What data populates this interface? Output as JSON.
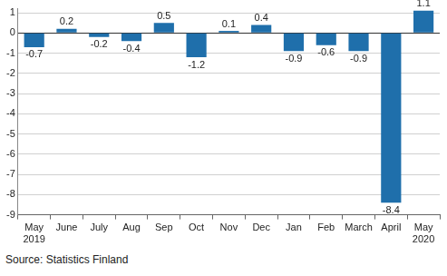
{
  "chart_data": {
    "type": "bar",
    "categories": [
      "May 2019",
      "June",
      "July",
      "Aug",
      "Sep",
      "Oct",
      "Nov",
      "Dec",
      "Jan",
      "Feb",
      "March",
      "April",
      "May 2020"
    ],
    "values": [
      -0.7,
      0.2,
      -0.2,
      -0.4,
      0.5,
      -1.2,
      0.1,
      0.4,
      -0.9,
      -0.6,
      -0.9,
      -8.4,
      1.1
    ],
    "color": "#1f6fab",
    "ylim": [
      -9,
      1.2
    ],
    "yticks": [
      -9,
      -8,
      -7,
      -6,
      -5,
      -4,
      -3,
      -2,
      -1,
      0,
      1
    ],
    "grid": true,
    "data_labels": true,
    "source": "Source: Statistics Finland"
  }
}
